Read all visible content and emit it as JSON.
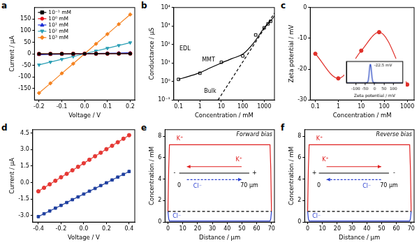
{
  "chart_data": [
    {
      "panel": "a",
      "type": "line",
      "x_label": "Voltage / V",
      "y_label": "Current / μA",
      "xlim": [
        -0.22,
        0.22
      ],
      "xticks": [
        -0.2,
        -0.1,
        {
          "value": 0,
          "label": "0.0"
        },
        0.1,
        0.2
      ],
      "ylim": [
        -200,
        200
      ],
      "yticks": [
        -150,
        -100,
        -50,
        0,
        50,
        100,
        150
      ],
      "grid": false,
      "legend": "top-left",
      "series": [
        {
          "name": "10⁻¹ mM",
          "color": "#000000",
          "marker": "square",
          "line_style": "solid",
          "x": [
            -0.2,
            -0.15,
            -0.1,
            -0.05,
            0,
            0.05,
            0.1,
            0.15,
            0.2
          ],
          "values": [
            -0.4,
            -0.3,
            -0.2,
            -0.1,
            0,
            0.1,
            0.2,
            0.3,
            0.4
          ]
        },
        {
          "name": "10⁰ mM",
          "color": "#e8141b",
          "marker": "circle",
          "line_style": "solid",
          "x": [
            -0.2,
            -0.15,
            -0.1,
            -0.05,
            0,
            0.05,
            0.1,
            0.15,
            0.2
          ],
          "values": [
            -1,
            -0.8,
            -0.5,
            -0.3,
            0,
            0.3,
            0.5,
            0.8,
            1
          ]
        },
        {
          "name": "10¹ mM",
          "color": "#1c2fd6",
          "marker": "triangle",
          "line_style": "solid",
          "x": [
            -0.2,
            -0.15,
            -0.1,
            -0.05,
            0,
            0.05,
            0.1,
            0.15,
            0.2
          ],
          "values": [
            -4,
            -3,
            -2,
            -1,
            0,
            1,
            2,
            3,
            4
          ]
        },
        {
          "name": "10² mM",
          "color": "#2a9fb5",
          "marker": "triangle_down",
          "line_style": "solid",
          "x": [
            -0.2,
            -0.15,
            -0.1,
            -0.05,
            0,
            0.05,
            0.1,
            0.15,
            0.2
          ],
          "values": [
            -48,
            -36,
            -24,
            -12,
            0,
            12,
            24,
            36,
            48
          ]
        },
        {
          "name": "10³ mM",
          "color": "#f5821f",
          "marker": "diamond",
          "line_style": "solid",
          "x": [
            -0.2,
            -0.15,
            -0.1,
            -0.05,
            0,
            0.05,
            0.1,
            0.15,
            0.2
          ],
          "values": [
            -170,
            -128,
            -85,
            -43,
            0,
            43,
            85,
            128,
            170
          ]
        }
      ]
    },
    {
      "panel": "b",
      "type": "line",
      "x_label": "Concentration / mM",
      "y_label": "Conductance / μS",
      "log": true,
      "xlim": [
        0.06,
        3000
      ],
      "xticks": [
        0.1,
        1,
        10,
        100,
        1000
      ],
      "ylim": [
        0.1,
        10000
      ],
      "yticks": [
        {
          "value": 0.1,
          "label": "10⁻¹"
        },
        {
          "value": 1,
          "label": "10⁰"
        },
        {
          "value": 10,
          "label": "10¹"
        },
        {
          "value": 100,
          "label": "10²"
        },
        {
          "value": 1000,
          "label": "10³"
        },
        {
          "value": 10000,
          "label": "10⁴"
        }
      ],
      "grid": false,
      "series": [
        {
          "color": "#000000",
          "marker": "none",
          "line_style": "smooth",
          "x": [
            0.1,
            0.3,
            1,
            3,
            10,
            30,
            100,
            300,
            1000,
            2000,
            3000
          ],
          "values": [
            1.3,
            1.9,
            3.0,
            5.4,
            10,
            17,
            30,
            110,
            800,
            1900,
            3500
          ]
        },
        {
          "color": "#000000",
          "marker": "none",
          "line_style": "dashed",
          "x": [
            7,
            3000
          ],
          "values": [
            0.1,
            5000
          ]
        },
        {
          "color": "#000000",
          "marker": "square_open",
          "line_style": "none",
          "x": [
            0.1,
            1,
            10,
            100,
            400,
            1000,
            1500,
            2000
          ],
          "values": [
            1.3,
            2.8,
            11,
            24,
            330,
            800,
            1300,
            1800
          ]
        }
      ],
      "annotations": [
        {
          "text": "EDL",
          "x": 0.2,
          "y": 60
        },
        {
          "text": "MMT",
          "x": 2.5,
          "y": 14
        },
        {
          "text": "Bulk",
          "x": 3,
          "y": 0.3
        }
      ]
    },
    {
      "panel": "c",
      "type": "line",
      "x_label": "Concentration / mM",
      "y_label": "Zeta potential / mV",
      "log": "x",
      "xlim": [
        0.06,
        2000
      ],
      "xticks": [
        0.1,
        1,
        10,
        100,
        1000
      ],
      "ylim": [
        -30,
        0
      ],
      "yticks": [
        -30,
        -20,
        -10,
        0
      ],
      "grid": false,
      "series": [
        {
          "color": "#e0302a",
          "marker": "circle",
          "line_style": "smooth",
          "x": [
            0.1,
            1,
            10,
            60,
            1000
          ],
          "values": [
            -15,
            -23,
            -14,
            -8,
            -25
          ]
        }
      ],
      "inset": {
        "type": "line",
        "x_label": "Zeta potential / mV",
        "xlim": [
          -150,
          150
        ],
        "xticks": [
          -100,
          -50,
          0,
          50,
          100
        ],
        "ylim": [
          0,
          1.15
        ],
        "yticks": [],
        "tick_labels": "x",
        "grid": false,
        "series": [
          {
            "color": "#1f3fbf",
            "marker": "none",
            "line_style": "smooth",
            "x": [
              -150,
              -50,
              -40,
              -34,
              -30,
              -26,
              -22.5,
              -19,
              -15,
              -11,
              -5,
              50,
              150
            ],
            "values": [
              0,
              0,
              0.02,
              0.12,
              0.42,
              0.85,
              1.0,
              0.85,
              0.42,
              0.12,
              0.02,
              0,
              0
            ]
          }
        ],
        "annotations": [
          {
            "text": "-22.5 mV",
            "x": 45,
            "y": 0.95
          }
        ]
      }
    },
    {
      "panel": "d",
      "type": "line",
      "x_label": "Voltage / V",
      "y_label": "Current / μA",
      "xlim": [
        -0.45,
        0.45
      ],
      "xticks": [
        -0.4,
        -0.2,
        {
          "value": 0,
          "label": "0.0"
        },
        0.2,
        0.4
      ],
      "ylim": [
        -3.6,
        4.8
      ],
      "yticks": [
        {
          "value": -3,
          "label": "-3.0"
        },
        -1.5,
        {
          "value": 0,
          "label": "0.0"
        },
        1.5,
        {
          "value": 3,
          "label": "3.0"
        },
        4.5
      ],
      "grid": false,
      "series": [
        {
          "color": "#e53935",
          "marker": "circle",
          "line_style": "solid",
          "x": [
            -0.4,
            -0.35,
            -0.3,
            -0.25,
            -0.2,
            -0.15,
            -0.1,
            -0.05,
            0,
            0.05,
            0.1,
            0.15,
            0.2,
            0.25,
            0.3,
            0.35,
            0.4
          ],
          "values": [
            -0.8,
            -0.48,
            -0.16,
            0.16,
            0.48,
            0.79,
            1.11,
            1.43,
            1.75,
            2.07,
            2.39,
            2.71,
            3.03,
            3.34,
            3.66,
            3.98,
            4.3
          ]
        },
        {
          "color": "#1f3f9f",
          "marker": "square",
          "line_style": "solid",
          "x": [
            -0.4,
            -0.35,
            -0.3,
            -0.25,
            -0.2,
            -0.15,
            -0.1,
            -0.05,
            0,
            0.05,
            0.1,
            0.15,
            0.2,
            0.25,
            0.3,
            0.35,
            0.4
          ],
          "values": [
            -3.1,
            -2.84,
            -2.59,
            -2.33,
            -2.08,
            -1.82,
            -1.56,
            -1.31,
            -1.05,
            -0.79,
            -0.54,
            -0.28,
            -0.03,
            0.23,
            0.49,
            0.74,
            1.0
          ]
        }
      ]
    },
    {
      "panel": "e",
      "type": "line",
      "title": "Forward bias",
      "x_label": "Distance / μm",
      "y_label": "Concentration / mM",
      "xlim": [
        -2,
        72
      ],
      "xticks": [
        0,
        10,
        20,
        30,
        40,
        50,
        60,
        70
      ],
      "ylim": [
        0,
        8.6
      ],
      "yticks": [
        0,
        2,
        4,
        6,
        8
      ],
      "grid": false,
      "series": [
        {
          "color": "#000000",
          "marker": "none",
          "line_style": "dashed",
          "x": [
            0,
            70
          ],
          "values": [
            1,
            1
          ]
        },
        {
          "color": "#e02020",
          "marker": "none",
          "line_style": "solid",
          "x": [
            0,
            0.5,
            1,
            2,
            5,
            10,
            20,
            30,
            40,
            50,
            60,
            65,
            68,
            69,
            69.5,
            70
          ],
          "values": [
            1.0,
            5.0,
            7.2,
            7.2,
            7.2,
            7.2,
            7.2,
            7.2,
            7.2,
            7.2,
            7.2,
            7.2,
            7.2,
            7.2,
            5.0,
            1.0
          ]
        },
        {
          "color": "#2a3fd0",
          "marker": "none",
          "line_style": "solid",
          "x": [
            0,
            0.5,
            1,
            2,
            5,
            10,
            20,
            30,
            40,
            50,
            60,
            65,
            68,
            69,
            69.5,
            70
          ],
          "values": [
            1.0,
            0.3,
            0.1,
            0.1,
            0.1,
            0.1,
            0.1,
            0.1,
            0.1,
            0.1,
            0.1,
            0.1,
            0.1,
            0.1,
            0.3,
            1.0
          ]
        }
      ],
      "annotations": [
        {
          "text": "K⁺",
          "x": 8,
          "y": 7.75,
          "color": "#e02020"
        },
        {
          "text": "Cl⁻",
          "x": 6,
          "y": 0.55,
          "color": "#2a3fd0"
        },
        {
          "text": "-",
          "x": 4.5,
          "y": 4.56
        },
        {
          "text": "+",
          "x": 58.5,
          "y": 4.56
        },
        {
          "text": "0",
          "x": 7.6,
          "y": 3.4
        },
        {
          "text": "70 μm",
          "x": 55,
          "y": 3.4
        },
        {
          "text": "K⁺",
          "x": 48,
          "y": 5.8,
          "color": "#e02020"
        },
        {
          "text": "Cl⁻",
          "x": 20,
          "y": 3.3,
          "color": "#2a3fd0"
        }
      ]
    },
    {
      "panel": "f",
      "type": "line",
      "title": "Reverse bias",
      "x_label": "Distance / μm",
      "y_label": "Concentration / mM",
      "xlim": [
        -2,
        72
      ],
      "xticks": [
        0,
        10,
        20,
        30,
        40,
        50,
        60,
        70
      ],
      "ylim": [
        0,
        8.6
      ],
      "yticks": [
        0,
        2,
        4,
        6,
        8
      ],
      "grid": false,
      "series": [
        {
          "color": "#000000",
          "marker": "none",
          "line_style": "dashed",
          "x": [
            0,
            70
          ],
          "values": [
            1,
            1
          ]
        },
        {
          "color": "#e02020",
          "marker": "none",
          "line_style": "solid",
          "x": [
            0,
            0.5,
            1,
            2,
            5,
            10,
            20,
            30,
            40,
            50,
            60,
            65,
            68,
            69,
            69.5,
            70
          ],
          "values": [
            1.0,
            5.0,
            7.2,
            7.2,
            7.2,
            7.2,
            7.2,
            7.2,
            7.2,
            7.2,
            7.2,
            7.2,
            7.2,
            7.2,
            5.0,
            1.0
          ]
        },
        {
          "color": "#2a3fd0",
          "marker": "none",
          "line_style": "solid",
          "x": [
            0,
            0.5,
            1,
            2,
            5,
            10,
            20,
            30,
            40,
            50,
            60,
            65,
            68,
            69,
            69.5,
            70
          ],
          "values": [
            1.0,
            0.3,
            0.1,
            0.1,
            0.1,
            0.1,
            0.1,
            0.1,
            0.1,
            0.1,
            0.1,
            0.1,
            0.1,
            0.1,
            0.3,
            1.0
          ]
        }
      ],
      "annotations": [
        {
          "text": "K⁺",
          "x": 8,
          "y": 7.75,
          "color": "#e02020"
        },
        {
          "text": "Cl⁻",
          "x": 6,
          "y": 0.55,
          "color": "#2a3fd0"
        },
        {
          "text": "+",
          "x": 4.5,
          "y": 4.56
        },
        {
          "text": "-",
          "x": 58.5,
          "y": 4.56
        },
        {
          "text": "0",
          "x": 7.6,
          "y": 3.4
        },
        {
          "text": "70 μm",
          "x": 55,
          "y": 3.4
        },
        {
          "text": "K⁺",
          "x": 12,
          "y": 5.8,
          "color": "#e02020"
        },
        {
          "text": "Cl⁻",
          "x": 40,
          "y": 3.3,
          "color": "#2a3fd0"
        }
      ]
    }
  ]
}
